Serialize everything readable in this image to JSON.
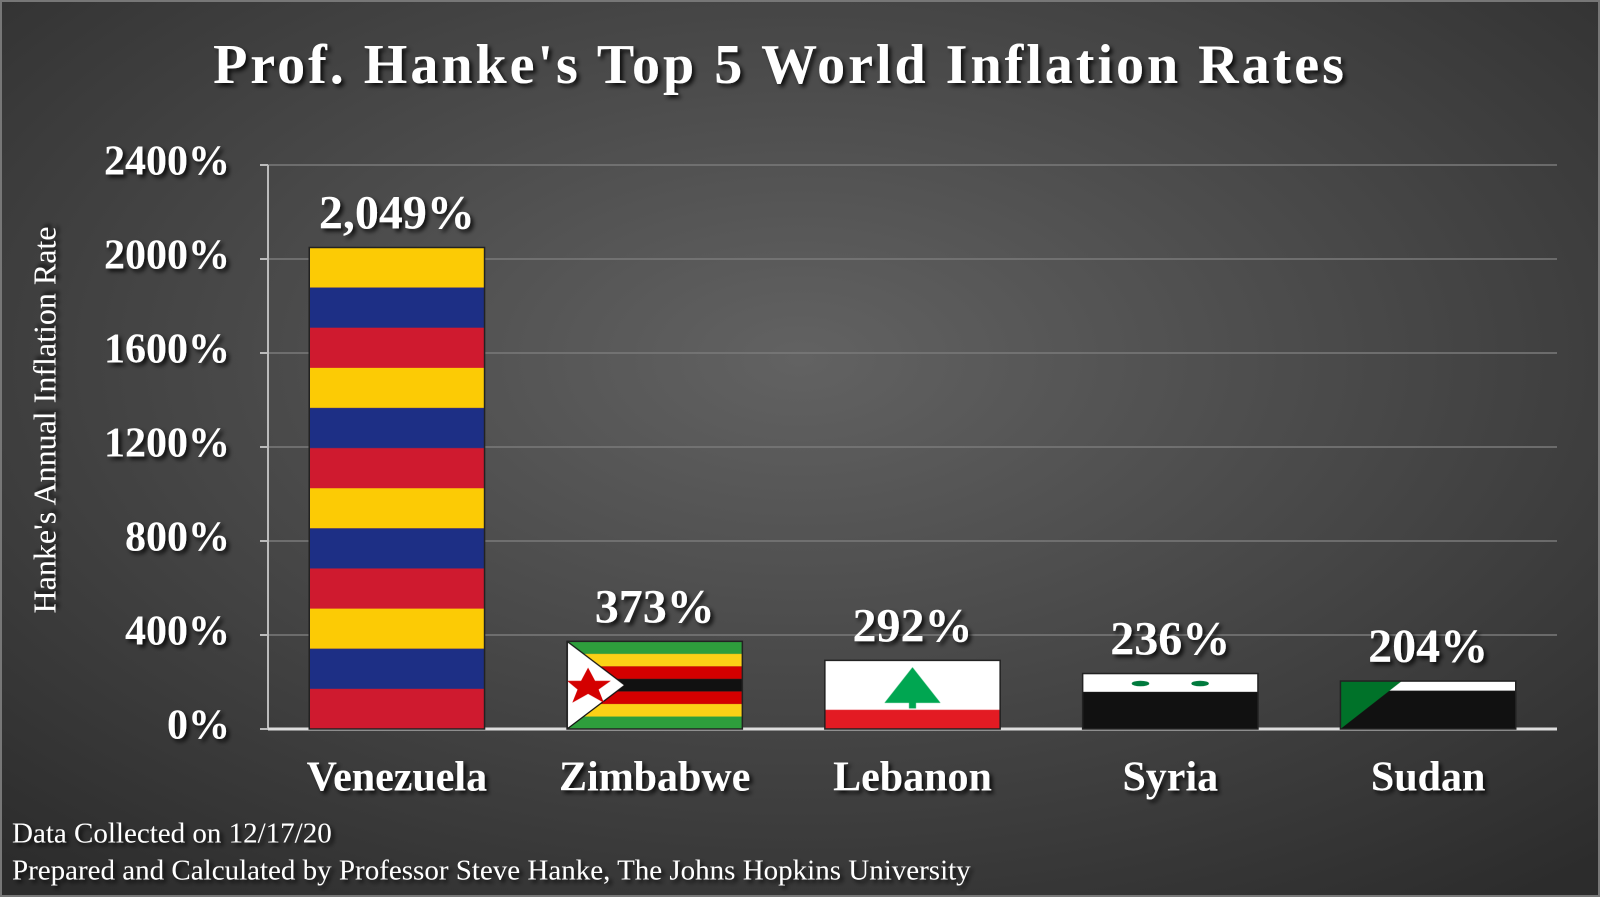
{
  "chart_data": {
    "type": "bar",
    "title": "Prof. Hanke's Top 5 World Inflation Rates",
    "y_label": "Hanke's Annual Inflation Rate",
    "categories": [
      "Venezuela",
      "Zimbabwe",
      "Lebanon",
      "Syria",
      "Sudan"
    ],
    "values": [
      2049,
      373,
      292,
      236,
      204
    ],
    "value_labels": [
      "2,049%",
      "373%",
      "292%",
      "236%",
      "204%"
    ],
    "ylim": [
      0,
      2400
    ],
    "yticks": [
      {
        "value": 0,
        "label": "0%"
      },
      {
        "value": 400,
        "label": "400%"
      },
      {
        "value": 800,
        "label": "800%"
      },
      {
        "value": 1200,
        "label": "1200%"
      },
      {
        "value": 1600,
        "label": "1600%"
      },
      {
        "value": 2000,
        "label": "2000%"
      },
      {
        "value": 2400,
        "label": "2400%"
      }
    ],
    "grid": true,
    "notes": [
      "Data Collected on 12/17/20",
      "Prepared and Calculated by Professor Steve Hanke, The Johns Hopkins University"
    ]
  }
}
